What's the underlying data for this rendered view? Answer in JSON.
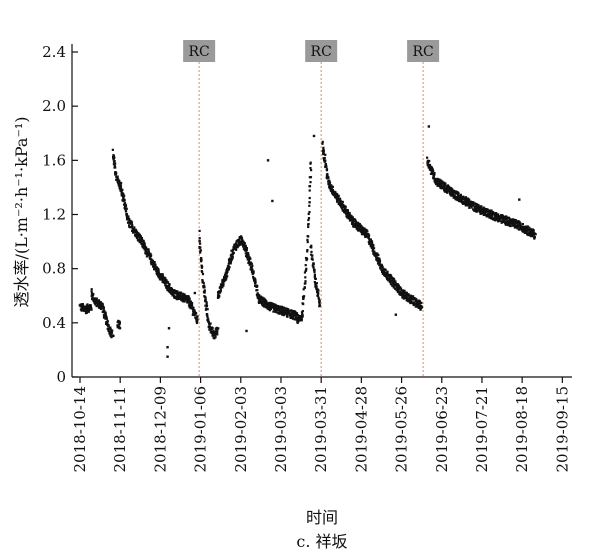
{
  "chart_data": {
    "type": "scatter",
    "title": "",
    "caption": "c. 祥坂",
    "xlabel": "时间",
    "ylabel": "透水率/(L·m⁻²·h⁻¹·kPa⁻¹)",
    "ylim": [
      0,
      2.4
    ],
    "yticks": [
      "0",
      "0.4",
      "0.8",
      "1.2",
      "1.6",
      "2.0",
      "2.4"
    ],
    "xticks": [
      "2018-10-14",
      "2018-11-11",
      "2018-12-09",
      "2019-01-06",
      "2019-02-03",
      "2019-03-03",
      "2019-03-31",
      "2019-04-28",
      "2019-05-26",
      "2019-06-23",
      "2019-07-21",
      "2019-08-18",
      "2019-09-15"
    ],
    "grid": false,
    "marker_color": "#111111",
    "rc_line_color": "#e8907a",
    "rc_label_bg": "#9a9a9a",
    "rc_events": [
      {
        "label": "RC",
        "date": "2019-01-05"
      },
      {
        "label": "RC",
        "date": "2019-03-31"
      },
      {
        "label": "RC",
        "date": "2019-06-10"
      }
    ],
    "segments": [
      {
        "start": "2018-10-14",
        "end": "2018-10-22",
        "points": [
          [
            0,
            0.52
          ],
          [
            0.5,
            0.5
          ],
          [
            1,
            0.52
          ]
        ]
      },
      {
        "start": "2018-10-22",
        "end": "2018-10-30",
        "points": [
          [
            0,
            0.62
          ],
          [
            0.3,
            0.56
          ],
          [
            1,
            0.52
          ]
        ]
      },
      {
        "start": "2018-10-30",
        "end": "2018-11-06",
        "points": [
          [
            0,
            0.5
          ],
          [
            0.5,
            0.38
          ],
          [
            1,
            0.3
          ]
        ]
      },
      {
        "start": "2018-11-09",
        "end": "2018-11-11",
        "points": [
          [
            0,
            0.39
          ],
          [
            1,
            0.38
          ]
        ]
      },
      {
        "start": "2018-11-06",
        "end": "2018-11-11",
        "points": [
          [
            0,
            1.65
          ],
          [
            0.4,
            1.5
          ],
          [
            1,
            1.4
          ]
        ]
      },
      {
        "start": "2018-11-11",
        "end": "2018-12-28",
        "points": [
          [
            0,
            1.42
          ],
          [
            0.12,
            1.15
          ],
          [
            0.3,
            1.02
          ],
          [
            0.55,
            0.78
          ],
          [
            0.78,
            0.62
          ],
          [
            1,
            0.57
          ]
        ]
      },
      {
        "start": "2018-12-28",
        "end": "2019-01-04",
        "points": [
          [
            0,
            0.58
          ],
          [
            1,
            0.42
          ]
        ]
      },
      {
        "start": "2019-01-05",
        "end": "2019-01-18",
        "points": [
          [
            0,
            1.05
          ],
          [
            0.25,
            0.65
          ],
          [
            0.5,
            0.4
          ],
          [
            0.8,
            0.3
          ],
          [
            1,
            0.36
          ]
        ]
      },
      {
        "start": "2019-01-18",
        "end": "2019-02-15",
        "points": [
          [
            0,
            0.6
          ],
          [
            0.2,
            0.75
          ],
          [
            0.4,
            0.95
          ],
          [
            0.6,
            1.02
          ],
          [
            0.8,
            0.85
          ],
          [
            1,
            0.62
          ]
        ]
      },
      {
        "start": "2019-02-15",
        "end": "2019-03-14",
        "points": [
          [
            0,
            0.58
          ],
          [
            0.3,
            0.52
          ],
          [
            0.7,
            0.48
          ],
          [
            1,
            0.45
          ]
        ]
      },
      {
        "start": "2019-03-14",
        "end": "2019-03-24",
        "points": [
          [
            0,
            0.42
          ],
          [
            0.4,
            0.45
          ],
          [
            0.7,
            0.9
          ],
          [
            1,
            1.6
          ]
        ]
      },
      {
        "start": "2019-03-24",
        "end": "2019-03-30",
        "points": [
          [
            0,
            0.95
          ],
          [
            0.5,
            0.7
          ],
          [
            1,
            0.55
          ]
        ]
      },
      {
        "start": "2019-04-01",
        "end": "2019-06-09",
        "points": [
          [
            0,
            1.72
          ],
          [
            0.06,
            1.43
          ],
          [
            0.15,
            1.32
          ],
          [
            0.3,
            1.15
          ],
          [
            0.45,
            1.05
          ],
          [
            0.6,
            0.8
          ],
          [
            0.8,
            0.62
          ],
          [
            1,
            0.52
          ]
        ]
      },
      {
        "start": "2019-06-13",
        "end": "2019-08-27",
        "points": [
          [
            0,
            1.6
          ],
          [
            0.08,
            1.45
          ],
          [
            0.25,
            1.35
          ],
          [
            0.45,
            1.25
          ],
          [
            0.65,
            1.18
          ],
          [
            0.85,
            1.12
          ],
          [
            1,
            1.05
          ]
        ]
      }
    ],
    "outliers": [
      {
        "date": "2018-12-14",
        "y": 0.15
      },
      {
        "date": "2018-12-14",
        "y": 0.22
      },
      {
        "date": "2018-12-15",
        "y": 0.36
      },
      {
        "date": "2019-01-02",
        "y": 0.62
      },
      {
        "date": "2019-02-22",
        "y": 1.6
      },
      {
        "date": "2019-02-25",
        "y": 1.3
      },
      {
        "date": "2019-02-07",
        "y": 0.34
      },
      {
        "date": "2019-03-26",
        "y": 1.78
      },
      {
        "date": "2019-06-14",
        "y": 1.85
      },
      {
        "date": "2019-08-16",
        "y": 1.31
      },
      {
        "date": "2019-05-22",
        "y": 0.46
      }
    ]
  }
}
